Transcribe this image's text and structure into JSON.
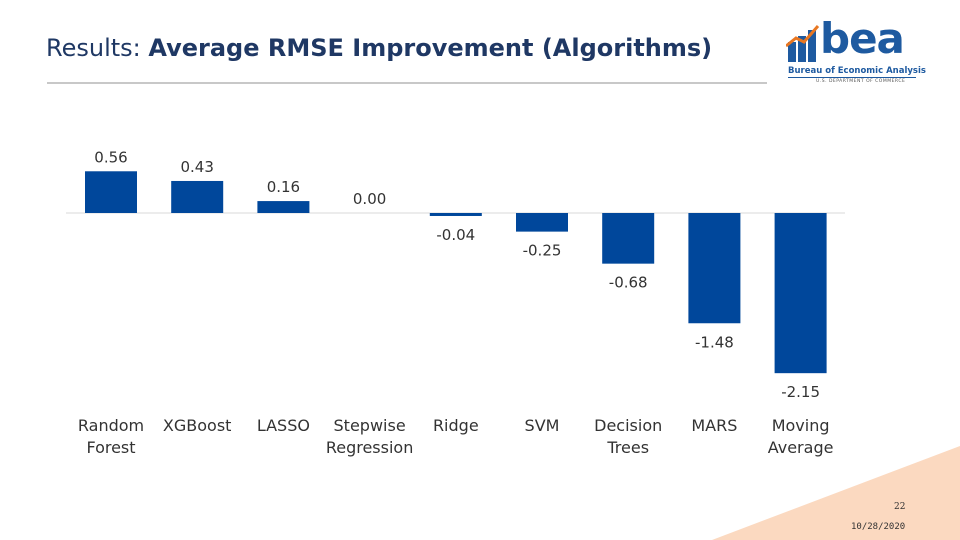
{
  "header": {
    "title_prefix": "Results: ",
    "title_main": "Average RMSE Improvement (Algorithms)"
  },
  "logo": {
    "wordmark": "bea",
    "line1": "Bureau of Economic Analysis",
    "line2": "U.S. DEPARTMENT OF COMMERCE"
  },
  "footer": {
    "page_number": "22",
    "date": "10/28/2020"
  },
  "colors": {
    "bar": "#00479b",
    "title": "#1f3864",
    "accent": "#f8c9a8"
  },
  "chart_data": {
    "type": "bar",
    "categories": [
      "Random Forest",
      "XGBoost",
      "LASSO",
      "Stepwise Regression",
      "Ridge",
      "SVM",
      "Decision Trees",
      "MARS",
      "Moving Average"
    ],
    "category_lines": [
      [
        "Random",
        "Forest"
      ],
      [
        "XGBoost"
      ],
      [
        "LASSO"
      ],
      [
        "Stepwise",
        "Regression"
      ],
      [
        "Ridge"
      ],
      [
        "SVM"
      ],
      [
        "Decision",
        "Trees"
      ],
      [
        "MARS"
      ],
      [
        "Moving",
        "Average"
      ]
    ],
    "values": [
      0.56,
      0.43,
      0.16,
      0.0,
      -0.04,
      -0.25,
      -0.68,
      -1.48,
      -2.15
    ],
    "value_labels": [
      "0.56",
      "0.43",
      "0.16",
      "0.00",
      "-0.04",
      "-0.25",
      "-0.68",
      "-1.48",
      "-2.15"
    ],
    "title": "",
    "xlabel": "",
    "ylabel": "",
    "ylim": [
      -2.15,
      0.56
    ],
    "grid": false,
    "legend": "none"
  }
}
